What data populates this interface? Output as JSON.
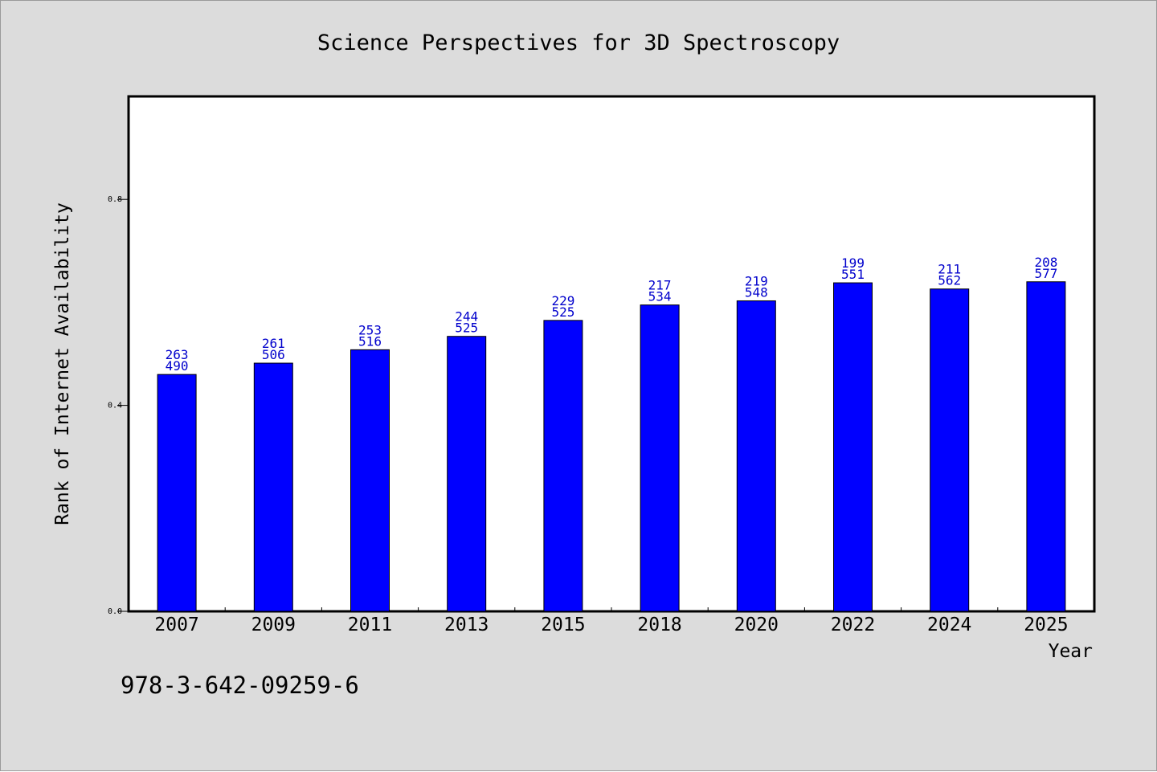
{
  "chart_data": {
    "type": "bar",
    "title": "Science Perspectives for 3D Spectroscopy",
    "xlabel": "Year",
    "ylabel": "Rank of Internet Availability",
    "categories": [
      "2007",
      "2009",
      "2011",
      "2013",
      "2015",
      "2018",
      "2020",
      "2022",
      "2024",
      "2025"
    ],
    "values": [
      0.46,
      0.482,
      0.508,
      0.534,
      0.565,
      0.595,
      0.603,
      0.638,
      0.626,
      0.64
    ],
    "data_labels": [
      [
        "263",
        "490"
      ],
      [
        "261",
        "506"
      ],
      [
        "253",
        "516"
      ],
      [
        "244",
        "525"
      ],
      [
        "229",
        "525"
      ],
      [
        "217",
        "534"
      ],
      [
        "219",
        "548"
      ],
      [
        "199",
        "551"
      ],
      [
        "211",
        "562"
      ],
      [
        "208",
        "577"
      ]
    ],
    "ylim": [
      0,
      1.0
    ],
    "yticks": [
      0.0,
      0.4,
      0.8
    ],
    "ytick_labels": [
      "0.0",
      "0.4",
      "0.8"
    ],
    "grid": false,
    "colors": {
      "bar": "#0000ff",
      "bar_edge": "#000000",
      "data_label": "#0000cc",
      "figure_background": "#dcdcdc",
      "plot_background": "#ffffff"
    }
  },
  "footnote": "978-3-642-09259-6"
}
